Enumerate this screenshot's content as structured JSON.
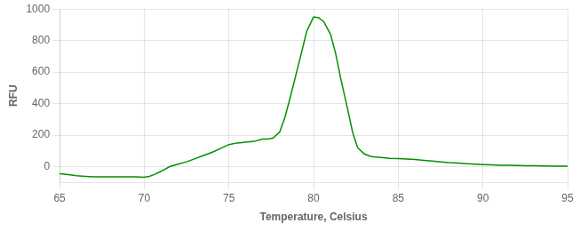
{
  "chart_data": {
    "type": "line",
    "xlabel": "Temperature, Celsius",
    "ylabel": "RFU",
    "x": [
      65.0,
      65.3,
      65.6,
      66.0,
      66.5,
      67.0,
      67.5,
      68.0,
      68.5,
      69.0,
      69.5,
      70.0,
      70.3,
      70.6,
      71.0,
      71.5,
      72.0,
      72.5,
      73.0,
      73.5,
      74.0,
      74.5,
      75.0,
      75.5,
      76.0,
      76.5,
      77.0,
      77.3,
      77.6,
      78.0,
      78.3,
      78.6,
      79.0,
      79.3,
      79.6,
      80.0,
      80.3,
      80.6,
      81.0,
      81.3,
      81.6,
      82.0,
      82.3,
      82.6,
      83.0,
      83.3,
      83.5,
      84.0,
      84.5,
      85.0,
      85.5,
      86.0,
      86.5,
      87.0,
      87.5,
      88.0,
      88.5,
      89.0,
      89.5,
      90.0,
      90.5,
      91.0,
      91.5,
      92.0,
      92.5,
      93.0,
      93.5,
      94.0,
      94.5,
      95.0
    ],
    "series": [
      {
        "color": "#009000",
        "values": [
          -45,
          -48,
          -52,
          -58,
          -62,
          -65,
          -65,
          -65,
          -65,
          -65,
          -65,
          -68,
          -62,
          -50,
          -30,
          0,
          15,
          30,
          50,
          70,
          90,
          115,
          140,
          150,
          155,
          160,
          175,
          175,
          180,
          220,
          310,
          430,
          600,
          730,
          860,
          950,
          945,
          920,
          840,
          720,
          560,
          370,
          220,
          120,
          80,
          68,
          62,
          57,
          52,
          50,
          48,
          45,
          40,
          35,
          30,
          25,
          22,
          18,
          15,
          13,
          11,
          9,
          8,
          7,
          6,
          5,
          4,
          3,
          3,
          2
        ]
      }
    ],
    "xlim": [
      65,
      95
    ],
    "ylim": [
      -100,
      1000
    ],
    "xticks": [
      65,
      70,
      75,
      80,
      85,
      90,
      95
    ],
    "yticks": [
      0,
      200,
      400,
      600,
      800,
      1000
    ],
    "grid": true
  }
}
